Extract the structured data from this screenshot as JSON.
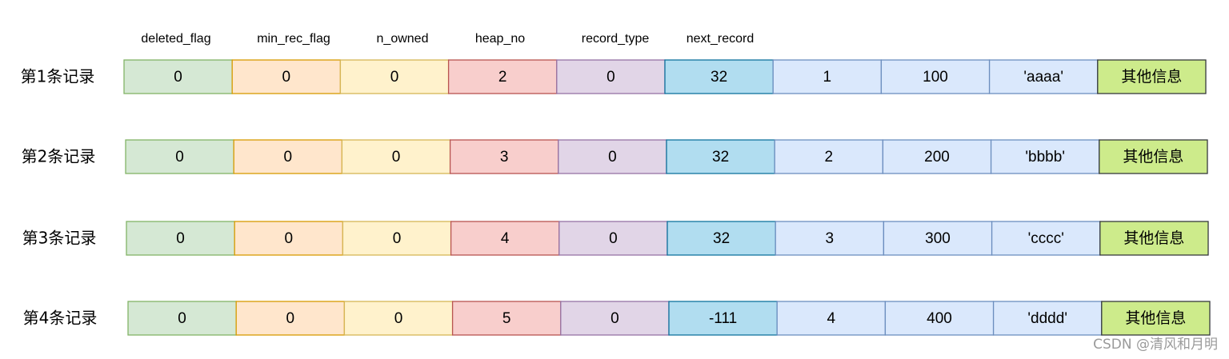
{
  "headers": [
    "deleted_flag",
    "min_rec_flag",
    "n_owned",
    "heap_no",
    "record_type",
    "next_record"
  ],
  "rows": [
    {
      "label": "第1条记录",
      "cells": [
        "0",
        "0",
        "0",
        "2",
        "0",
        "32",
        "1",
        "100",
        "'aaaa'",
        "其他信息"
      ]
    },
    {
      "label": "第2条记录",
      "cells": [
        "0",
        "0",
        "0",
        "3",
        "0",
        "32",
        "2",
        "200",
        "'bbbb'",
        "其他信息"
      ]
    },
    {
      "label": "第3条记录",
      "cells": [
        "0",
        "0",
        "0",
        "4",
        "0",
        "32",
        "3",
        "300",
        "'cccc'",
        "其他信息"
      ]
    },
    {
      "label": "第4条记录",
      "cells": [
        "0",
        "0",
        "0",
        "5",
        "0",
        "-111",
        "4",
        "400",
        "'dddd'",
        "其他信息"
      ]
    }
  ],
  "watermark": "CSDN @清风和月明"
}
